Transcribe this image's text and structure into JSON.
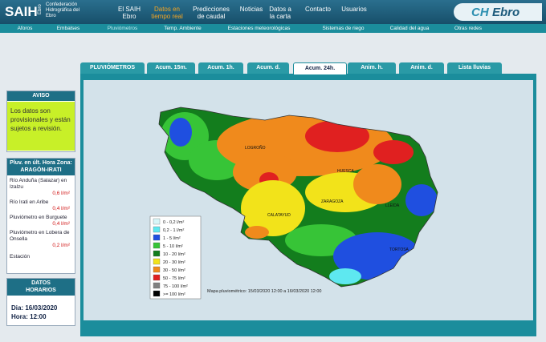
{
  "header": {
    "logo": "SAIH",
    "logo_sub": "Ebro",
    "org": "Confederación Hidrográfica del Ebro",
    "nav": [
      "El SAIH Ebro",
      "Datos en tiempo real",
      "Predicciones de caudal",
      "Noticias",
      "Datos a la carta",
      "Contacto",
      "Usuarios"
    ],
    "brand_a": "CH",
    "brand_b": "Ebro"
  },
  "subnav": [
    "Aforos",
    "Embalses",
    "Pluviómetros",
    "Temp. Ambiente",
    "Estaciones meteorológicas",
    "Sistemas de riego",
    "Calidad del agua",
    "Otras redes"
  ],
  "sidebar": {
    "aviso": {
      "title": "AVISO",
      "text": "Los datos son provisionales y están sujetos a revisión."
    },
    "pluv": {
      "title": "Pluv. en últ. Hora Zona: ARAGÓN-IRATI",
      "stations": [
        {
          "name": "Río Anduña (Salazar) en Izalzu",
          "value": "0,6 l/m²"
        },
        {
          "name": "Río Irati en Aribe",
          "value": "0,4 l/m²"
        },
        {
          "name": "Pluviómetro en Burguete",
          "value": "0,4 l/m²"
        },
        {
          "name": "Pluviómetro en Lobera de Onsella",
          "value": "0,2 l/m²"
        }
      ],
      "footer": "Estación"
    },
    "horario": {
      "title": "DATOS HORARIOS",
      "dia": "Dia: 16/03/2020",
      "hora": "Hora: 12:00"
    }
  },
  "tabs": [
    "PLUVIÓMETROS",
    "Acum. 15m.",
    "Acum. 1h.",
    "Acum. d.",
    "Acum. 24h.",
    "Anim. h.",
    "Anim. d.",
    "Lista lluvias"
  ],
  "map": {
    "labels": [
      "LOGROÑO",
      "HUESCA",
      "ZARAGOZA",
      "CALATAYUD",
      "LLEIDA",
      "TORTOSA"
    ],
    "legend": [
      {
        "label": "0 - 0,2 l/m²",
        "color": "#d8f6f8"
      },
      {
        "label": "0,2 - 1 l/m²",
        "color": "#5ee8f0"
      },
      {
        "label": "1 - 5 l/m²",
        "color": "#1f4fe0"
      },
      {
        "label": "5 - 10 l/m²",
        "color": "#37c437"
      },
      {
        "label": "10 - 20 l/m²",
        "color": "#137d1d"
      },
      {
        "label": "20 - 30 l/m²",
        "color": "#f2e31a"
      },
      {
        "label": "30 - 50 l/m²",
        "color": "#f08a1c"
      },
      {
        "label": "50 - 75 l/m²",
        "color": "#e02020"
      },
      {
        "label": "75 - 100 l/m²",
        "color": "#808080"
      },
      {
        "label": ">= 100 l/m²",
        "color": "#000000"
      }
    ],
    "caption": "Mapa pluviométrico: 15/03/2020 12:00 a 16/03/2020 12:00"
  }
}
